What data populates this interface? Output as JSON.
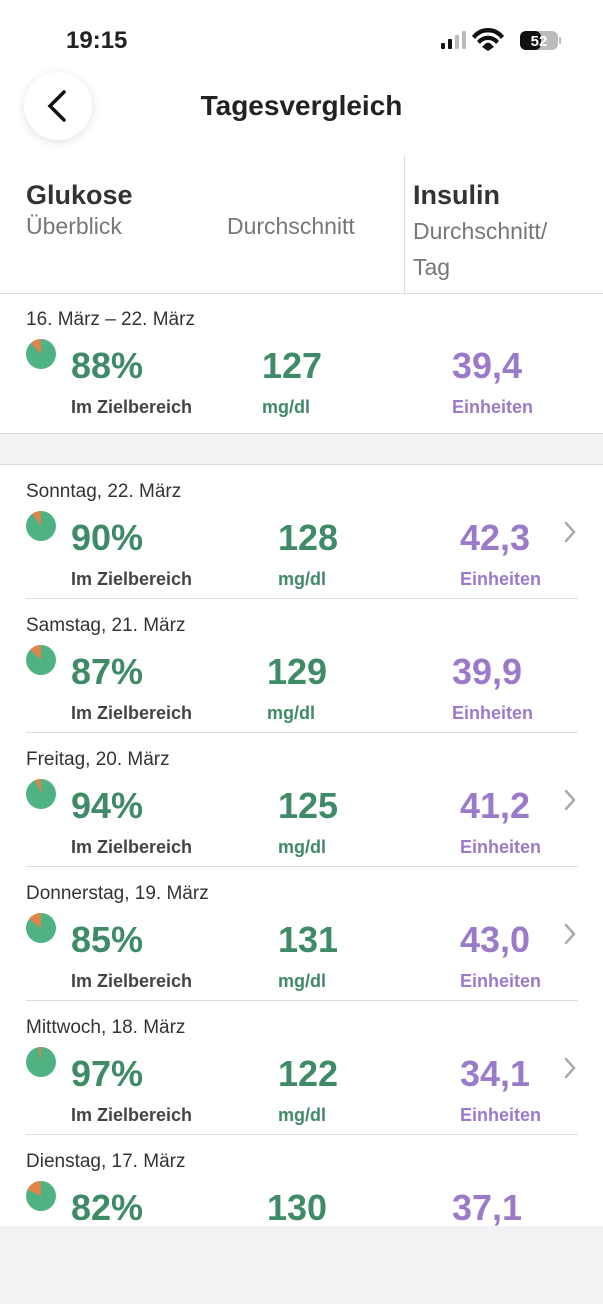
{
  "status_bar": {
    "time": "19:15",
    "battery": "52"
  },
  "nav": {
    "title": "Tagesvergleich"
  },
  "header": {
    "glucose_title": "Glukose",
    "glucose_overview": "Überblick",
    "glucose_average": "Durchschnitt",
    "insulin_title": "Insulin",
    "insulin_average": "Durchschnitt/ Tag"
  },
  "labels": {
    "in_range": "Im Zielbereich",
    "glucose_unit": "mg/dl",
    "insulin_unit": "Einheiten"
  },
  "summary": {
    "date": "16. März – 22. März",
    "in_range": {
      "value": 88,
      "label": "88%"
    },
    "glucose": "127",
    "insulin": "39,4"
  },
  "days": [
    {
      "date": "Sonntag, 22. März",
      "in_range": {
        "value": 90,
        "label": "90%"
      },
      "glucose": "128",
      "insulin": "42,3",
      "has_detail": true
    },
    {
      "date": "Samstag, 21. März",
      "in_range": {
        "value": 87,
        "label": "87%"
      },
      "glucose": "129",
      "insulin": "39,9",
      "has_detail": false
    },
    {
      "date": "Freitag, 20. März",
      "in_range": {
        "value": 94,
        "label": "94%"
      },
      "glucose": "125",
      "insulin": "41,2",
      "has_detail": true
    },
    {
      "date": "Donnerstag, 19. März",
      "in_range": {
        "value": 85,
        "label": "85%"
      },
      "glucose": "131",
      "insulin": "43,0",
      "has_detail": true
    },
    {
      "date": "Mittwoch, 18. März",
      "in_range": {
        "value": 97,
        "label": "97%"
      },
      "glucose": "122",
      "insulin": "34,1",
      "has_detail": true
    },
    {
      "date": "Dienstag, 17. März",
      "in_range": {
        "value": 82,
        "label": "82%"
      },
      "glucose": "130",
      "insulin": "37,1",
      "has_detail": false
    }
  ]
}
